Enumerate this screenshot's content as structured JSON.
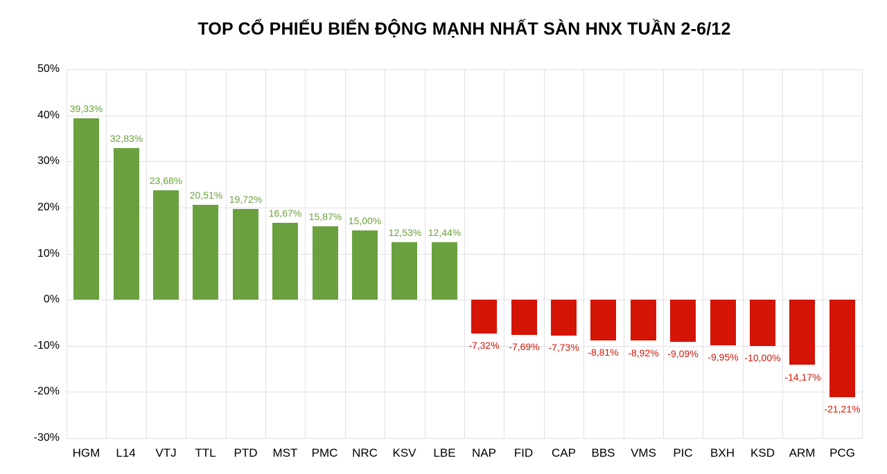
{
  "title": "TOP CỔ PHIẾU BIẾN ĐỘNG MẠNH NHẤT SÀN HNX TUẦN 2-6/12",
  "chart_data": {
    "type": "bar",
    "title": "TOP CỔ PHIẾU BIẾN ĐỘNG MẠNH NHẤT SÀN HNX TUẦN 2-6/12",
    "categories": [
      "HGM",
      "L14",
      "VTJ",
      "TTL",
      "PTD",
      "MST",
      "PMC",
      "NRC",
      "KSV",
      "LBE",
      "NAP",
      "FID",
      "CAP",
      "BBS",
      "VMS",
      "PIC",
      "BXH",
      "KSD",
      "ARM",
      "PCG"
    ],
    "values": [
      39.33,
      32.83,
      23.68,
      20.51,
      19.72,
      16.67,
      15.87,
      15.0,
      12.53,
      12.44,
      -7.32,
      -7.69,
      -7.73,
      -8.81,
      -8.92,
      -9.09,
      -9.95,
      -10.0,
      -14.17,
      -21.21
    ],
    "value_labels": [
      "39,33%",
      "32,83%",
      "23,68%",
      "20,51%",
      "19,72%",
      "16,67%",
      "15,87%",
      "15,00%",
      "12,53%",
      "12,44%",
      "-7,32%",
      "-7,69%",
      "-7,73%",
      "-8,81%",
      "-8,92%",
      "-9,09%",
      "-9,95%",
      "-10,00%",
      "-14,17%",
      "-21,21%"
    ],
    "xlabel": "",
    "ylabel": "",
    "ylim": [
      -30,
      50
    ],
    "ytick_step": 10,
    "ytick_labels": [
      "50%",
      "40%",
      "30%",
      "20%",
      "10%",
      "0%",
      "-10%",
      "-20%",
      "-30%"
    ],
    "grid": true,
    "legend": "none",
    "positive_color": "#6aa13e",
    "negative_color": "#d41405",
    "gridline_color": "#e2dfe8",
    "text_color": "#000000"
  }
}
